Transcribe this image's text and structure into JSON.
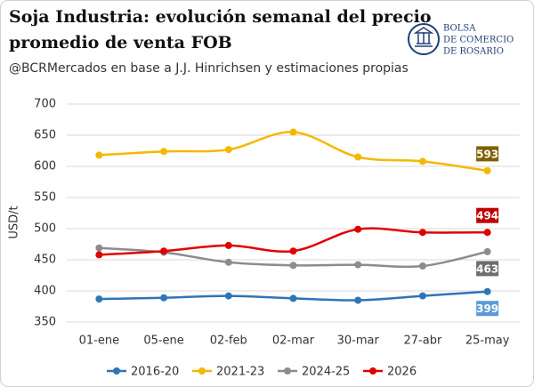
{
  "chart_data": {
    "type": "line",
    "title": [
      "Soja Industria: evolución semanal del precio",
      "promedio de venta FOB"
    ],
    "subtitle": "@BCRMercados en base a J.J. Hinrichsen y estimaciones propias",
    "logo": [
      "BOLSA",
      "DE COMERCIO",
      "DE ROSARIO"
    ],
    "y_label": "USD/t",
    "categories": [
      "01-ene",
      "05-ene",
      "02-feb",
      "02-mar",
      "30-mar",
      "27-abr",
      "25-may"
    ],
    "series": [
      {
        "name": "2016-20",
        "color": "#2e75b6",
        "label_color": "#5b9bd5",
        "values": [
          387,
          389,
          392,
          388,
          385,
          392,
          399
        ]
      },
      {
        "name": "2021-23",
        "color": "#f5b800",
        "label_color": "#7f6000",
        "values": [
          618,
          624,
          627,
          655,
          615,
          608,
          593
        ]
      },
      {
        "name": "2024-25",
        "color": "#8c8c8c",
        "label_color": "#6d6d6d",
        "values": [
          469,
          462,
          446,
          441,
          442,
          440,
          463
        ]
      },
      {
        "name": "2026",
        "color": "#e00000",
        "label_color": "#c00000",
        "values": [
          458,
          464,
          473,
          464,
          499,
          494,
          494
        ]
      }
    ],
    "ylim": [
      350,
      700
    ],
    "yticks": [
      350,
      400,
      450,
      500,
      550,
      600,
      650,
      700
    ],
    "grid": true,
    "legend": "bottom"
  }
}
